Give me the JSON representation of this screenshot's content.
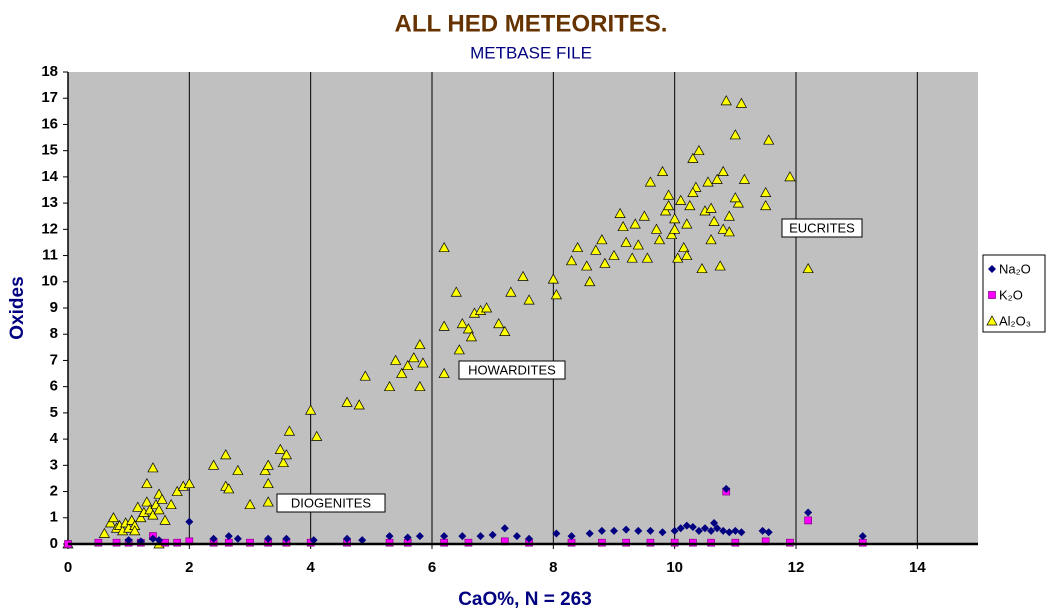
{
  "chart_data": {
    "type": "scatter",
    "title": "ALL HED METEORITES.",
    "subtitle": "METBASE FILE",
    "x_label": "CaO%,  N = 263",
    "y_label": "Oxides",
    "xlim": [
      0,
      15
    ],
    "ylim": [
      0,
      18
    ],
    "xticks": [
      0,
      2,
      4,
      6,
      8,
      10,
      12,
      14
    ],
    "yticks": [
      0,
      1,
      2,
      3,
      4,
      5,
      6,
      7,
      8,
      9,
      10,
      11,
      12,
      13,
      14,
      15,
      16,
      17,
      18
    ],
    "grid": "x",
    "legend": "right",
    "annotations": [
      "EUCRITES",
      "HOWARDITES",
      "DIOGENITES"
    ],
    "series": [
      {
        "name": "Na₂O",
        "color": "#000080",
        "marker": "diamond",
        "x": [
          1.0,
          1.2,
          1.4,
          1.5,
          2.0,
          2.4,
          2.65,
          2.8,
          3.3,
          3.6,
          4.05,
          4.6,
          4.85,
          5.3,
          5.6,
          5.8,
          6.2,
          6.5,
          6.8,
          7.0,
          7.2,
          7.4,
          7.6,
          8.05,
          8.3,
          8.6,
          8.8,
          9.0,
          9.2,
          9.4,
          9.6,
          9.8,
          10.0,
          10.1,
          10.2,
          10.3,
          10.4,
          10.5,
          10.6,
          10.65,
          10.7,
          10.8,
          10.85,
          10.9,
          11.0,
          11.1,
          11.45,
          11.55,
          12.2,
          13.1
        ],
        "values": [
          0.15,
          0.1,
          0.2,
          0.15,
          0.85,
          0.2,
          0.3,
          0.2,
          0.2,
          0.2,
          0.15,
          0.2,
          0.15,
          0.3,
          0.25,
          0.3,
          0.3,
          0.3,
          0.3,
          0.35,
          0.6,
          0.3,
          0.2,
          0.4,
          0.3,
          0.4,
          0.5,
          0.5,
          0.55,
          0.5,
          0.5,
          0.45,
          0.5,
          0.6,
          0.7,
          0.65,
          0.5,
          0.6,
          0.5,
          0.8,
          0.6,
          0.5,
          2.1,
          0.45,
          0.5,
          0.45,
          0.5,
          0.45,
          1.2,
          0.3
        ]
      },
      {
        "name": "K₂O",
        "color": "#ff00ff",
        "marker": "square",
        "x": [
          0,
          0.5,
          0.8,
          1.0,
          1.2,
          1.4,
          1.6,
          1.8,
          2.0,
          2.4,
          2.65,
          3.0,
          3.3,
          3.6,
          4.0,
          4.6,
          5.3,
          5.6,
          6.2,
          6.6,
          7.2,
          7.6,
          8.3,
          8.8,
          9.2,
          9.6,
          10.0,
          10.3,
          10.6,
          10.85,
          11.0,
          11.5,
          11.9,
          12.2,
          13.1
        ],
        "values": [
          0,
          0.05,
          0.05,
          0.05,
          0.05,
          0.3,
          0.05,
          0.05,
          0.1,
          0.05,
          0.05,
          0.05,
          0.05,
          0.05,
          0.05,
          0.05,
          0.05,
          0.05,
          0.05,
          0.05,
          0.1,
          0.05,
          0.05,
          0.05,
          0.05,
          0.05,
          0.05,
          0.05,
          0.05,
          2.0,
          0.05,
          0.1,
          0.05,
          0.9,
          0.05
        ]
      },
      {
        "name": "Al₂O₃",
        "color": "#ffff00",
        "marker": "triangle",
        "x": [
          0,
          0.6,
          0.7,
          0.75,
          0.8,
          0.85,
          0.9,
          0.95,
          1.0,
          1.05,
          1.1,
          1.15,
          1.2,
          1.25,
          1.3,
          1.3,
          1.35,
          1.4,
          1.4,
          1.45,
          1.5,
          1.5,
          1.55,
          1.6,
          1.7,
          1.8,
          1.9,
          2.0,
          2.4,
          2.6,
          2.6,
          2.65,
          2.8,
          3.0,
          3.25,
          3.3,
          3.3,
          3.3,
          3.5,
          3.55,
          3.6,
          3.65,
          4.0,
          4.1,
          4.6,
          4.8,
          4.9,
          5.3,
          5.4,
          5.5,
          5.6,
          5.7,
          5.8,
          5.85,
          5.8,
          6.2,
          6.2,
          6.2,
          6.4,
          6.45,
          6.5,
          6.6,
          6.65,
          6.7,
          6.8,
          6.9,
          7.1,
          7.2,
          7.3,
          7.5,
          7.6,
          8.0,
          8.05,
          8.3,
          8.4,
          8.55,
          8.6,
          8.7,
          8.8,
          8.85,
          9.0,
          9.1,
          9.15,
          9.2,
          9.3,
          9.35,
          9.4,
          9.5,
          9.55,
          9.6,
          9.7,
          9.75,
          9.8,
          9.85,
          9.9,
          9.95,
          10.0,
          10.05,
          10.1,
          10.15,
          10.2,
          10.25,
          10.3,
          10.35,
          10.4,
          10.45,
          10.5,
          10.55,
          10.6,
          10.65,
          10.7,
          10.75,
          10.8,
          10.85,
          10.9,
          11.0,
          11.05,
          11.1,
          11.15,
          11.5,
          11.55,
          11.9,
          12.2,
          11.5,
          10.2,
          10.0,
          9.9,
          10.3,
          10.6,
          10.8,
          10.9,
          11.0,
          1.1,
          1.5
        ],
        "values": [
          0,
          0.4,
          0.8,
          1.0,
          0.6,
          0.7,
          0.5,
          0.8,
          0.6,
          0.9,
          0.7,
          1.4,
          1.0,
          1.2,
          2.3,
          1.6,
          1.3,
          2.9,
          1.1,
          1.5,
          1.9,
          1.3,
          1.7,
          0.9,
          1.5,
          2.0,
          2.2,
          2.3,
          3.0,
          3.4,
          2.2,
          2.1,
          2.8,
          1.5,
          2.8,
          3.0,
          1.6,
          2.3,
          3.6,
          3.1,
          3.4,
          4.3,
          5.1,
          4.1,
          5.4,
          5.3,
          6.4,
          6.0,
          7.0,
          6.5,
          6.8,
          7.1,
          7.6,
          6.9,
          6.0,
          8.3,
          6.5,
          11.3,
          9.6,
          7.4,
          8.4,
          8.2,
          7.9,
          8.8,
          8.9,
          9.0,
          8.4,
          8.1,
          9.6,
          10.2,
          9.3,
          10.1,
          9.5,
          10.8,
          11.3,
          10.6,
          10.0,
          11.2,
          11.6,
          10.7,
          11.0,
          12.6,
          12.1,
          11.5,
          10.9,
          12.2,
          11.4,
          12.5,
          10.9,
          13.8,
          12.0,
          11.6,
          14.2,
          12.7,
          13.3,
          11.8,
          12.4,
          10.9,
          13.1,
          11.3,
          12.2,
          12.9,
          14.7,
          13.6,
          15.0,
          10.5,
          12.7,
          13.8,
          11.6,
          12.3,
          13.9,
          10.6,
          14.2,
          16.9,
          12.5,
          15.6,
          13.0,
          16.8,
          13.9,
          12.9,
          15.4,
          14.0,
          10.5,
          13.4,
          11.0,
          12.0,
          12.9,
          13.4,
          12.8,
          12.0,
          11.9,
          13.2,
          0.5,
          0.0
        ]
      }
    ]
  }
}
